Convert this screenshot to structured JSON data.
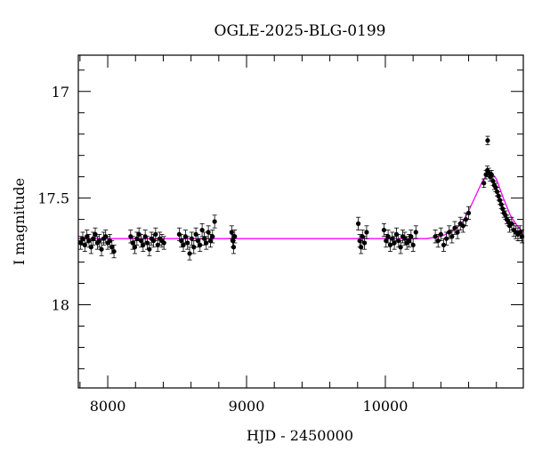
{
  "chart_data": {
    "type": "scatter",
    "title": "OGLE-2025-BLG-0199",
    "xlabel": "HJD - 2450000",
    "ylabel": "I magnitude",
    "xlim": [
      7788,
      10994
    ],
    "ylim": [
      18.39,
      16.83
    ],
    "y_inverted": true,
    "xticks": [
      8000,
      9000,
      10000
    ],
    "xtick_labels": [
      "8000",
      "9000",
      "10000"
    ],
    "yticks": [
      17,
      17.5,
      18
    ],
    "ytick_labels": [
      "17",
      "17.5",
      "18"
    ],
    "grid": false,
    "colors": {
      "points": "#000000",
      "model": "#ff00ff"
    },
    "series": [
      {
        "type": "errorbar",
        "points": [
          [
            7805,
            17.71,
            0.03
          ],
          [
            7820,
            17.69,
            0.03
          ],
          [
            7835,
            17.72,
            0.03
          ],
          [
            7850,
            17.68,
            0.03
          ],
          [
            7865,
            17.7,
            0.03
          ],
          [
            7880,
            17.73,
            0.03
          ],
          [
            7895,
            17.69,
            0.03
          ],
          [
            7910,
            17.67,
            0.03
          ],
          [
            7925,
            17.71,
            0.03
          ],
          [
            7940,
            17.7,
            0.03
          ],
          [
            7955,
            17.74,
            0.03
          ],
          [
            7970,
            17.69,
            0.03
          ],
          [
            7985,
            17.68,
            0.03
          ],
          [
            8000,
            17.71,
            0.03
          ],
          [
            8015,
            17.7,
            0.03
          ],
          [
            8030,
            17.73,
            0.03
          ],
          [
            8045,
            17.75,
            0.03
          ],
          [
            8165,
            17.68,
            0.03
          ],
          [
            8180,
            17.71,
            0.03
          ],
          [
            8195,
            17.73,
            0.03
          ],
          [
            8210,
            17.69,
            0.03
          ],
          [
            8225,
            17.67,
            0.03
          ],
          [
            8240,
            17.7,
            0.03
          ],
          [
            8255,
            17.72,
            0.03
          ],
          [
            8270,
            17.68,
            0.03
          ],
          [
            8285,
            17.71,
            0.03
          ],
          [
            8300,
            17.74,
            0.03
          ],
          [
            8315,
            17.69,
            0.03
          ],
          [
            8330,
            17.7,
            0.03
          ],
          [
            8345,
            17.67,
            0.03
          ],
          [
            8360,
            17.72,
            0.03
          ],
          [
            8375,
            17.69,
            0.03
          ],
          [
            8390,
            17.7,
            0.03
          ],
          [
            8405,
            17.71,
            0.03
          ],
          [
            8515,
            17.67,
            0.03
          ],
          [
            8530,
            17.7,
            0.03
          ],
          [
            8545,
            17.72,
            0.03
          ],
          [
            8560,
            17.68,
            0.03
          ],
          [
            8575,
            17.71,
            0.03
          ],
          [
            8590,
            17.76,
            0.03
          ],
          [
            8605,
            17.69,
            0.03
          ],
          [
            8620,
            17.73,
            0.03
          ],
          [
            8635,
            17.67,
            0.03
          ],
          [
            8650,
            17.7,
            0.03
          ],
          [
            8665,
            17.72,
            0.03
          ],
          [
            8680,
            17.65,
            0.03
          ],
          [
            8695,
            17.69,
            0.03
          ],
          [
            8710,
            17.71,
            0.03
          ],
          [
            8725,
            17.66,
            0.03
          ],
          [
            8740,
            17.7,
            0.03
          ],
          [
            8755,
            17.68,
            0.03
          ],
          [
            8770,
            17.61,
            0.03
          ],
          [
            8893,
            17.66,
            0.03
          ],
          [
            8900,
            17.7,
            0.03
          ],
          [
            8907,
            17.73,
            0.03
          ],
          [
            8915,
            17.68,
            0.03
          ],
          [
            9805,
            17.62,
            0.03
          ],
          [
            9815,
            17.7,
            0.03
          ],
          [
            9825,
            17.73,
            0.03
          ],
          [
            9835,
            17.68,
            0.03
          ],
          [
            9850,
            17.71,
            0.03
          ],
          [
            9865,
            17.66,
            0.03
          ],
          [
            9990,
            17.65,
            0.03
          ],
          [
            10005,
            17.7,
            0.03
          ],
          [
            10020,
            17.68,
            0.03
          ],
          [
            10035,
            17.72,
            0.03
          ],
          [
            10050,
            17.69,
            0.03
          ],
          [
            10065,
            17.71,
            0.03
          ],
          [
            10080,
            17.67,
            0.03
          ],
          [
            10095,
            17.7,
            0.03
          ],
          [
            10110,
            17.73,
            0.03
          ],
          [
            10125,
            17.68,
            0.03
          ],
          [
            10140,
            17.69,
            0.03
          ],
          [
            10155,
            17.71,
            0.03
          ],
          [
            10170,
            17.7,
            0.03
          ],
          [
            10185,
            17.68,
            0.03
          ],
          [
            10200,
            17.72,
            0.03
          ],
          [
            10220,
            17.66,
            0.03
          ],
          [
            10360,
            17.68,
            0.03
          ],
          [
            10380,
            17.7,
            0.03
          ],
          [
            10400,
            17.67,
            0.03
          ],
          [
            10420,
            17.72,
            0.03
          ],
          [
            10440,
            17.69,
            0.03
          ],
          [
            10460,
            17.66,
            0.03
          ],
          [
            10480,
            17.68,
            0.03
          ],
          [
            10500,
            17.64,
            0.03
          ],
          [
            10520,
            17.66,
            0.03
          ],
          [
            10540,
            17.62,
            0.03
          ],
          [
            10560,
            17.63,
            0.03
          ],
          [
            10580,
            17.6,
            0.03
          ],
          [
            10600,
            17.57,
            0.03
          ],
          [
            10710,
            17.43,
            0.02
          ],
          [
            10725,
            17.39,
            0.02
          ],
          [
            10735,
            17.37,
            0.02
          ],
          [
            10737,
            17.23,
            0.02
          ],
          [
            10745,
            17.38,
            0.02
          ],
          [
            10755,
            17.4,
            0.02
          ],
          [
            10765,
            17.39,
            0.02
          ],
          [
            10775,
            17.42,
            0.02
          ],
          [
            10785,
            17.44,
            0.02
          ],
          [
            10795,
            17.45,
            0.02
          ],
          [
            10805,
            17.47,
            0.02
          ],
          [
            10815,
            17.49,
            0.02
          ],
          [
            10825,
            17.51,
            0.02
          ],
          [
            10835,
            17.53,
            0.02
          ],
          [
            10845,
            17.55,
            0.02
          ],
          [
            10855,
            17.57,
            0.02
          ],
          [
            10865,
            17.58,
            0.02
          ],
          [
            10875,
            17.6,
            0.02
          ],
          [
            10885,
            17.61,
            0.02
          ],
          [
            10895,
            17.63,
            0.03
          ],
          [
            10910,
            17.62,
            0.03
          ],
          [
            10925,
            17.65,
            0.03
          ],
          [
            10940,
            17.66,
            0.03
          ],
          [
            10955,
            17.67,
            0.03
          ],
          [
            10970,
            17.66,
            0.03
          ],
          [
            10985,
            17.68,
            0.03
          ]
        ]
      },
      {
        "type": "line",
        "points": [
          [
            7788,
            17.69
          ],
          [
            10300,
            17.69
          ],
          [
            10400,
            17.68
          ],
          [
            10500,
            17.65
          ],
          [
            10560,
            17.61
          ],
          [
            10600,
            17.56
          ],
          [
            10650,
            17.49
          ],
          [
            10700,
            17.42
          ],
          [
            10740,
            17.385
          ],
          [
            10763,
            17.38
          ],
          [
            10800,
            17.41
          ],
          [
            10850,
            17.5
          ],
          [
            10900,
            17.58
          ],
          [
            10950,
            17.63
          ],
          [
            10994,
            17.66
          ]
        ]
      }
    ]
  }
}
